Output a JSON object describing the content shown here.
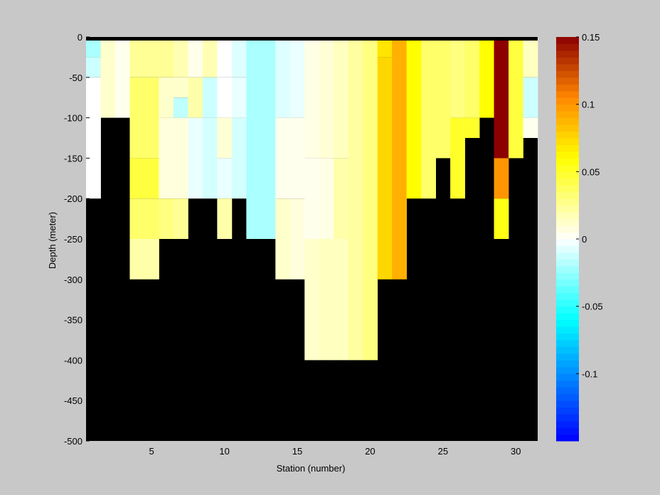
{
  "chart_data": {
    "type": "heatmap",
    "xlabel": "Station (number)",
    "ylabel": "Depth (meter)",
    "xlim": [
      1,
      31
    ],
    "ylim": [
      -500,
      0
    ],
    "xticks": [
      5,
      10,
      15,
      20,
      25,
      30
    ],
    "yticks": [
      0,
      -50,
      -100,
      -150,
      -200,
      -250,
      -300,
      -350,
      -400,
      -450,
      -500
    ],
    "colorbar": {
      "range": [
        -0.15,
        0.15
      ],
      "ticks": [
        0.15,
        0.1,
        0.05,
        0,
        -0.05,
        -0.1
      ],
      "tick_labels": [
        "0.15",
        "0.1",
        "0.05",
        "0",
        "-0.05",
        "-0.1"
      ]
    },
    "depth_step": 12.5,
    "background_color": "#000000",
    "top_bar_color": "#000000",
    "bottom_depth": [
      -200,
      -200,
      -100,
      -100,
      -300,
      -300,
      -250,
      -250,
      -200,
      -250,
      -200,
      -250,
      -250,
      -300,
      -300,
      -400,
      -400,
      -400,
      -400,
      -400,
      -300,
      -300,
      -200,
      -200,
      -150,
      -200,
      -125,
      -100,
      -250,
      -150,
      -125
    ],
    "profiles": [
      {
        "station": 1,
        "segments": [
          {
            "from": 0,
            "to": -25,
            "value": -0.02
          },
          {
            "from": -25,
            "to": -50,
            "value": -0.012
          },
          {
            "from": -50,
            "to": -200,
            "value": 0.0
          }
        ]
      },
      {
        "station": 2,
        "segments": [
          {
            "from": 0,
            "to": -100,
            "value": 0.012
          }
        ]
      },
      {
        "station": 3,
        "segments": [
          {
            "from": 0,
            "to": -100,
            "value": 0.004
          }
        ]
      },
      {
        "station": 4,
        "segments": [
          {
            "from": 0,
            "to": -50,
            "value": 0.025
          },
          {
            "from": -50,
            "to": -150,
            "value": 0.035
          },
          {
            "from": -150,
            "to": -200,
            "value": 0.045
          },
          {
            "from": -200,
            "to": -250,
            "value": 0.035
          },
          {
            "from": -250,
            "to": -300,
            "value": 0.02
          }
        ]
      },
      {
        "station": 5,
        "segments": [
          {
            "from": 0,
            "to": -50,
            "value": 0.025
          },
          {
            "from": -50,
            "to": -150,
            "value": 0.035
          },
          {
            "from": -150,
            "to": -200,
            "value": 0.045
          },
          {
            "from": -200,
            "to": -250,
            "value": 0.035
          },
          {
            "from": -250,
            "to": -300,
            "value": 0.02
          }
        ]
      },
      {
        "station": 6,
        "segments": [
          {
            "from": 0,
            "to": -50,
            "value": 0.025
          },
          {
            "from": -50,
            "to": -100,
            "value": 0.012
          },
          {
            "from": -100,
            "to": -200,
            "value": 0.008
          },
          {
            "from": -200,
            "to": -250,
            "value": 0.03
          }
        ]
      },
      {
        "station": 7,
        "segments": [
          {
            "from": 0,
            "to": -50,
            "value": 0.018
          },
          {
            "from": -50,
            "to": -75,
            "value": 0.012
          },
          {
            "from": -75,
            "to": -100,
            "value": -0.015
          },
          {
            "from": -100,
            "to": -200,
            "value": 0.008
          },
          {
            "from": -200,
            "to": -250,
            "value": 0.025
          }
        ]
      },
      {
        "station": 8,
        "segments": [
          {
            "from": 0,
            "to": -50,
            "value": 0.005
          },
          {
            "from": -50,
            "to": -100,
            "value": 0.02
          },
          {
            "from": -100,
            "to": -200,
            "value": -0.005
          }
        ]
      },
      {
        "station": 9,
        "segments": [
          {
            "from": 0,
            "to": -50,
            "value": 0.018
          },
          {
            "from": -50,
            "to": -100,
            "value": -0.012
          },
          {
            "from": -100,
            "to": -200,
            "value": -0.01
          }
        ]
      },
      {
        "station": 10,
        "segments": [
          {
            "from": 0,
            "to": -50,
            "value": 0.0
          },
          {
            "from": -50,
            "to": -100,
            "value": 0.0
          },
          {
            "from": -100,
            "to": -150,
            "value": 0.01
          },
          {
            "from": -150,
            "to": -200,
            "value": -0.005
          },
          {
            "from": -200,
            "to": -250,
            "value": 0.02
          }
        ]
      },
      {
        "station": 11,
        "segments": [
          {
            "from": 0,
            "to": -50,
            "value": -0.008
          },
          {
            "from": -50,
            "to": -100,
            "value": -0.005
          },
          {
            "from": -100,
            "to": -200,
            "value": -0.01
          }
        ]
      },
      {
        "station": 12,
        "segments": [
          {
            "from": 0,
            "to": -250,
            "value": -0.02
          }
        ]
      },
      {
        "station": 13,
        "segments": [
          {
            "from": 0,
            "to": -250,
            "value": -0.02
          }
        ]
      },
      {
        "station": 14,
        "segments": [
          {
            "from": 0,
            "to": -100,
            "value": -0.008
          },
          {
            "from": -100,
            "to": -200,
            "value": 0.004
          },
          {
            "from": -200,
            "to": -300,
            "value": 0.012
          }
        ]
      },
      {
        "station": 15,
        "segments": [
          {
            "from": 0,
            "to": -100,
            "value": -0.005
          },
          {
            "from": -100,
            "to": -200,
            "value": 0.004
          },
          {
            "from": -200,
            "to": -300,
            "value": 0.008
          }
        ]
      },
      {
        "station": 16,
        "segments": [
          {
            "from": 0,
            "to": -150,
            "value": 0.006
          },
          {
            "from": -150,
            "to": -250,
            "value": 0.004
          },
          {
            "from": -250,
            "to": -400,
            "value": 0.012
          }
        ]
      },
      {
        "station": 17,
        "segments": [
          {
            "from": 0,
            "to": -150,
            "value": 0.01
          },
          {
            "from": -150,
            "to": -250,
            "value": 0.006
          },
          {
            "from": -250,
            "to": -400,
            "value": 0.015
          }
        ]
      },
      {
        "station": 18,
        "segments": [
          {
            "from": 0,
            "to": -150,
            "value": 0.015
          },
          {
            "from": -150,
            "to": -250,
            "value": 0.02
          },
          {
            "from": -250,
            "to": -400,
            "value": 0.015
          }
        ]
      },
      {
        "station": 19,
        "segments": [
          {
            "from": 0,
            "to": -400,
            "value": 0.022
          }
        ]
      },
      {
        "station": 20,
        "segments": [
          {
            "from": 0,
            "to": -400,
            "value": 0.03
          }
        ]
      },
      {
        "station": 21,
        "segments": [
          {
            "from": 0,
            "to": -25,
            "value": 0.07
          },
          {
            "from": -25,
            "to": -300,
            "value": 0.075
          }
        ]
      },
      {
        "station": 22,
        "segments": [
          {
            "from": 0,
            "to": -300,
            "value": 0.09
          }
        ]
      },
      {
        "station": 23,
        "segments": [
          {
            "from": 0,
            "to": -200,
            "value": 0.06
          }
        ]
      },
      {
        "station": 24,
        "segments": [
          {
            "from": 0,
            "to": -200,
            "value": 0.035
          }
        ]
      },
      {
        "station": 25,
        "segments": [
          {
            "from": 0,
            "to": -150,
            "value": 0.035
          }
        ]
      },
      {
        "station": 26,
        "segments": [
          {
            "from": 0,
            "to": -100,
            "value": 0.03
          },
          {
            "from": -100,
            "to": -200,
            "value": 0.05
          }
        ]
      },
      {
        "station": 27,
        "segments": [
          {
            "from": 0,
            "to": -100,
            "value": 0.035
          },
          {
            "from": -100,
            "to": -125,
            "value": 0.05
          }
        ]
      },
      {
        "station": 28,
        "segments": [
          {
            "from": 0,
            "to": -100,
            "value": 0.06
          }
        ]
      },
      {
        "station": 29,
        "segments": [
          {
            "from": 0,
            "to": -150,
            "value": 0.15
          },
          {
            "from": -150,
            "to": -200,
            "value": 0.1
          },
          {
            "from": -200,
            "to": -250,
            "value": 0.055
          }
        ]
      },
      {
        "station": 30,
        "segments": [
          {
            "from": 0,
            "to": -150,
            "value": 0.045
          }
        ]
      },
      {
        "station": 31,
        "segments": [
          {
            "from": 0,
            "to": -50,
            "value": 0.015
          },
          {
            "from": -50,
            "to": -100,
            "value": -0.012
          },
          {
            "from": -100,
            "to": -125,
            "value": 0.004
          }
        ]
      }
    ]
  }
}
